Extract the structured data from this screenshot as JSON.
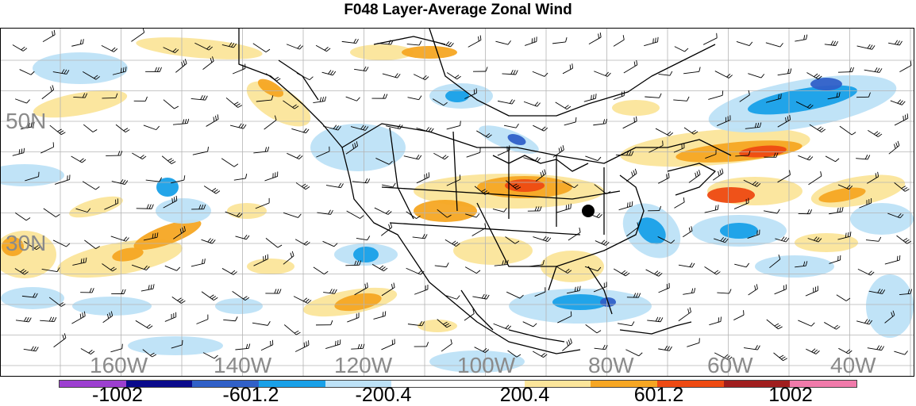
{
  "title": "F048 Layer-Average Zonal Wind",
  "lat_labels": [
    "50N",
    "30N"
  ],
  "lon_labels": [
    "160W",
    "140W",
    "120W",
    "100W",
    "80W",
    "60W",
    "40W"
  ],
  "colorbar": {
    "colors": [
      "#9c3fd0",
      "#0a0a8c",
      "#3060c8",
      "#18a0e8",
      "#bde2f7",
      "#ffffff",
      "#ffffff",
      "#fbe59a",
      "#f6a623",
      "#ee4a12",
      "#a01e1e",
      "#f07aaa"
    ],
    "labels": [
      "-1002",
      "-601.2",
      "-200.4",
      "200.4",
      "601.2",
      "1002"
    ]
  },
  "colors": {
    "positive_light": "#fbe59a",
    "positive_mid": "#f6a623",
    "positive_strong": "#ee4a12",
    "negative_light": "#bde2f7",
    "negative_mid": "#18a0e8",
    "negative_strong": "#3060c8",
    "negative_extreme": "#7f3fd6",
    "gridline": "#b4b4b4",
    "coast": "#000000",
    "axis_label": "#8a8a8a"
  }
}
